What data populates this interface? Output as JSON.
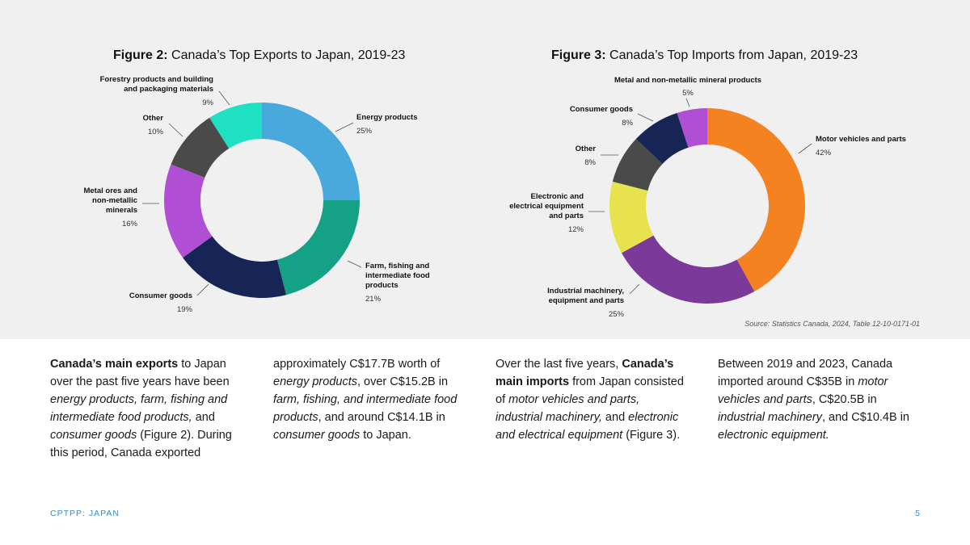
{
  "chart_data": [
    {
      "type": "pie",
      "title_prefix": "Figure 2:",
      "title": "Canada’s Top Exports to Japan, 2019-23",
      "donut": true,
      "slices": [
        {
          "label": "Energy products",
          "value": 25,
          "pct_label": "25%",
          "color": "#4aa9dc"
        },
        {
          "label": "Farm, fishing and intermediate food products",
          "value": 21,
          "pct_label": "21%",
          "color": "#15a185"
        },
        {
          "label": "Consumer goods",
          "value": 19,
          "pct_label": "19%",
          "color": "#162456"
        },
        {
          "label": "Metal ores and non-metallic minerals",
          "value": 16,
          "pct_label": "16%",
          "color": "#b04fd3"
        },
        {
          "label": "Other",
          "value": 10,
          "pct_label": "10%",
          "color": "#4a4a4a"
        },
        {
          "label": "Forestry products and building and packaging materials",
          "value": 9,
          "pct_label": "9%",
          "color": "#1ee0c2"
        }
      ]
    },
    {
      "type": "pie",
      "title_prefix": "Figure 3:",
      "title": "Canada’s Top Imports from Japan, 2019-23",
      "donut": true,
      "slices": [
        {
          "label": "Motor vehicles and parts",
          "value": 42,
          "pct_label": "42%",
          "color": "#f58220"
        },
        {
          "label": "Industrial machinery, equipment and parts",
          "value": 25,
          "pct_label": "25%",
          "color": "#7b3a9a"
        },
        {
          "label": "Electronic and electrical equipment and parts",
          "value": 12,
          "pct_label": "12%",
          "color": "#e8e24f"
        },
        {
          "label": "Other",
          "value": 8,
          "pct_label": "8%",
          "color": "#4a4a4a"
        },
        {
          "label": "Consumer goods",
          "value": 8,
          "pct_label": "8%",
          "color": "#162456"
        },
        {
          "label": "Metal and non-metallic mineral products",
          "value": 5,
          "pct_label": "5%",
          "color": "#b04fd3"
        }
      ]
    }
  ],
  "source": "Source: Statistics Canada, 2024, Table 12-10-0171-01",
  "body_columns": [
    [
      {
        "t": "Canada’s main exports",
        "s": "b"
      },
      {
        "t": " to Japan over the past five years have been "
      },
      {
        "t": "energy products, farm, fishing and intermediate food products,",
        "s": "i"
      },
      {
        "t": " and "
      },
      {
        "t": "consumer goods",
        "s": "i"
      },
      {
        "t": " (Figure 2). During this period, Canada exported"
      }
    ],
    [
      {
        "t": "approximately C$17.7B worth of "
      },
      {
        "t": "energy products",
        "s": "i"
      },
      {
        "t": ", over C$15.2B in "
      },
      {
        "t": "farm, fishing, and intermediate food products",
        "s": "i"
      },
      {
        "t": ", and around C$14.1B in "
      },
      {
        "t": "consumer goods",
        "s": "i"
      },
      {
        "t": " to Japan."
      }
    ],
    [
      {
        "t": "Over the last five years, "
      },
      {
        "t": "Canada’s main imports",
        "s": "b"
      },
      {
        "t": " from Japan consisted of "
      },
      {
        "t": "motor vehicles and parts, industrial machinery,",
        "s": "i"
      },
      {
        "t": " and "
      },
      {
        "t": "electronic and electrical equipment",
        "s": "i"
      },
      {
        "t": " (Figure 3)."
      }
    ],
    [
      {
        "t": "Between 2019 and 2023, Canada imported around C$35B in "
      },
      {
        "t": "motor vehicles and parts",
        "s": "i"
      },
      {
        "t": ", C$20.5B in "
      },
      {
        "t": "industrial machinery",
        "s": "i"
      },
      {
        "t": ", and C$10.4B in "
      },
      {
        "t": "electronic equipment.",
        "s": "i"
      }
    ]
  ],
  "footer": {
    "left": "CPTPP: JAPAN",
    "page_number": "5"
  }
}
